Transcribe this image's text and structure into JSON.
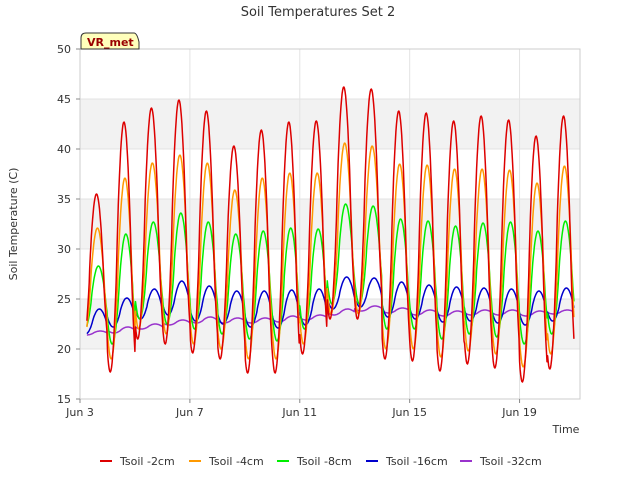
{
  "chart_data": {
    "type": "line",
    "title": "Soil Temperatures Set 2",
    "xlabel": "Time",
    "ylabel": "Soil Temperature (C)",
    "ylim": [
      15,
      50
    ],
    "yticks": [
      15,
      20,
      25,
      30,
      35,
      40,
      45,
      50
    ],
    "xlim_days": [
      3,
      21.2
    ],
    "xticks": [
      {
        "day": 3,
        "label": "Jun 3"
      },
      {
        "day": 7,
        "label": "Jun 7"
      },
      {
        "day": 11,
        "label": "Jun 11"
      },
      {
        "day": 15,
        "label": "Jun 15"
      },
      {
        "day": 19,
        "label": "Jun 19"
      }
    ],
    "grid": true,
    "alternating_bands": true,
    "legend_position": "bottom",
    "annotation": "VR_met",
    "series": [
      {
        "name": "Tsoil -2cm",
        "color": "#dd0000",
        "daily_max": [
          35.5,
          42.7,
          44.1,
          44.9,
          43.8,
          40.3,
          41.9,
          42.7,
          42.8,
          46.2,
          46.0,
          43.8,
          43.6,
          42.8,
          43.3,
          42.9,
          41.3,
          43.3
        ],
        "daily_min": [
          20.0,
          17.7,
          21.0,
          20.5,
          19.6,
          19.0,
          17.6,
          17.6,
          19.5,
          23.0,
          23.0,
          19.0,
          18.8,
          17.8,
          18.5,
          18.1,
          16.7,
          18.0
        ]
      },
      {
        "name": "Tsoil -4cm",
        "color": "#ff9900",
        "daily_max": [
          32.1,
          37.1,
          38.6,
          39.4,
          38.6,
          35.9,
          37.1,
          37.6,
          37.6,
          40.6,
          40.3,
          38.5,
          38.4,
          38.0,
          38.0,
          37.9,
          36.6,
          38.3
        ],
        "daily_min": [
          21.0,
          19.0,
          22.0,
          21.5,
          20.5,
          20.0,
          19.0,
          19.0,
          20.5,
          23.5,
          23.5,
          20.0,
          20.0,
          19.2,
          19.8,
          19.5,
          18.2,
          19.5
        ]
      },
      {
        "name": "Tsoil -8cm",
        "color": "#00ee00",
        "daily_max": [
          28.3,
          31.5,
          32.7,
          33.6,
          32.7,
          31.5,
          31.8,
          32.1,
          32.0,
          34.5,
          34.3,
          33.0,
          32.8,
          32.3,
          32.6,
          32.7,
          31.8,
          32.8
        ],
        "daily_min": [
          22.0,
          20.5,
          23.0,
          22.5,
          22.0,
          21.5,
          21.0,
          20.8,
          22.0,
          24.5,
          24.5,
          22.0,
          22.0,
          21.0,
          21.5,
          21.2,
          20.5,
          21.5
        ]
      },
      {
        "name": "Tsoil -16cm",
        "color": "#0000cc",
        "daily_max": [
          24.0,
          25.1,
          26.0,
          26.8,
          26.3,
          25.8,
          25.8,
          25.9,
          26.0,
          27.2,
          27.1,
          26.7,
          26.4,
          26.2,
          26.1,
          26.0,
          25.8,
          26.1
        ],
        "daily_min": [
          21.5,
          22.2,
          23.0,
          23.4,
          22.8,
          22.5,
          22.2,
          22.1,
          22.4,
          24.0,
          24.2,
          23.2,
          23.0,
          22.7,
          22.8,
          22.6,
          22.4,
          22.8
        ]
      },
      {
        "name": "Tsoil -32cm",
        "color": "#9933cc",
        "daily_max": [
          21.8,
          22.2,
          22.5,
          22.9,
          23.2,
          23.1,
          23.1,
          23.3,
          23.4,
          24.0,
          24.3,
          24.1,
          23.9,
          23.8,
          23.9,
          23.9,
          23.8,
          23.9
        ],
        "daily_min": [
          21.4,
          21.6,
          22.0,
          22.4,
          22.6,
          22.6,
          22.6,
          22.7,
          22.9,
          23.4,
          23.8,
          23.6,
          23.4,
          23.3,
          23.4,
          23.4,
          23.3,
          23.5
        ]
      }
    ]
  }
}
